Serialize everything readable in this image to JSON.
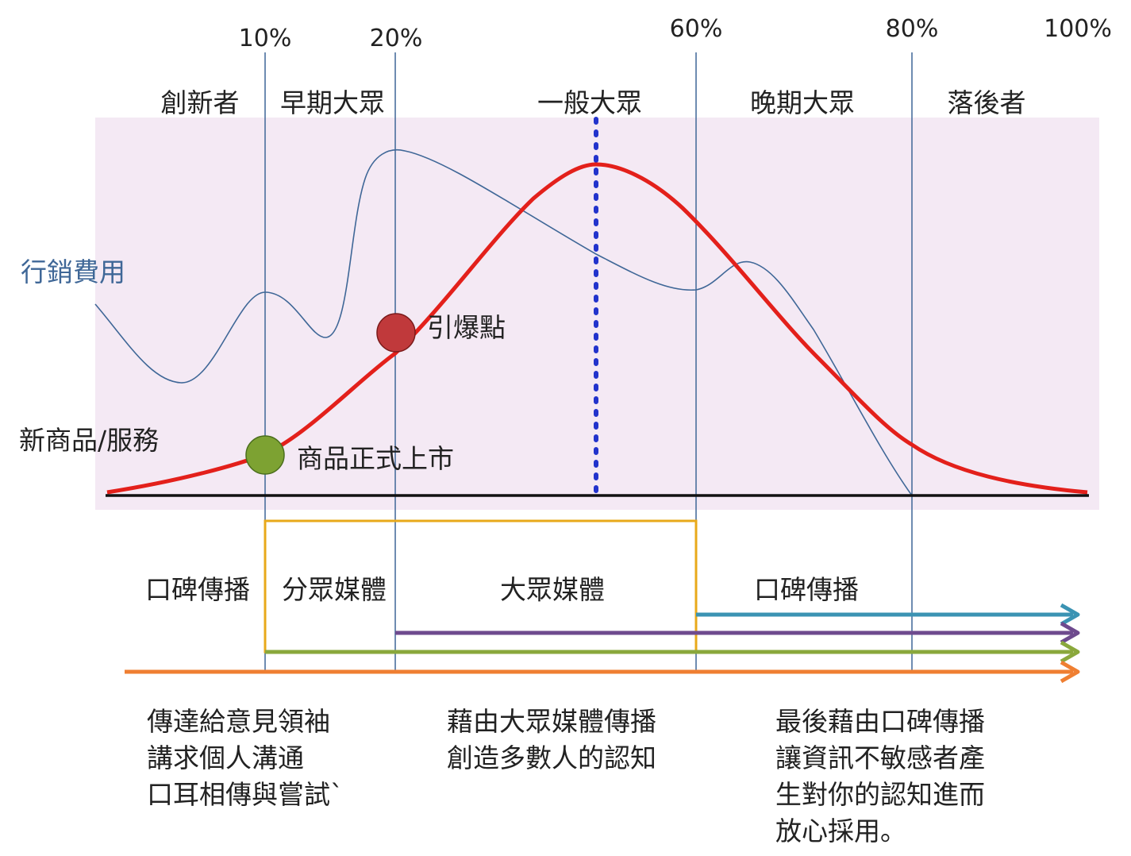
{
  "colors": {
    "plot_bg": "#f4e9f4",
    "bell_curve": "#e3201b",
    "spend_curve": "#3f6797",
    "peak_dotted": "#2233cc",
    "divider": "#3f6797",
    "baseline": "#111111",
    "media_box": "#e8a91a",
    "innovator_point": "#7da232",
    "tipping_point": "#c0393b",
    "arrow_teal": "#3b93b3",
    "arrow_purple": "#6e4a8e",
    "arrow_green": "#8aa83c",
    "arrow_orange": "#ef7f32"
  },
  "percent_markers": [
    "10%",
    "20%",
    "60%",
    "80%",
    "100%"
  ],
  "segments": [
    "創新者",
    "早期大眾",
    "一般大眾",
    "晚期大眾",
    "落後者"
  ],
  "left_labels": {
    "marketing_cost": "行銷費用",
    "new_product": "新商品/服務"
  },
  "points": {
    "launch": "商品正式上市",
    "tipping": "引爆點"
  },
  "media": [
    "口碑傳播",
    "分眾媒體",
    "大眾媒體",
    "口碑傳播"
  ],
  "notes": [
    [
      "傳達給意見領袖",
      "講求個人溝通",
      "口耳相傳與嘗試`"
    ],
    [
      "藉由大眾媒體傳播",
      "創造多數人的認知"
    ],
    [
      "最後藉由口碑傳播",
      "讓資訊不敏感者產",
      "生對你的認知進而",
      "放心採用。"
    ]
  ]
}
